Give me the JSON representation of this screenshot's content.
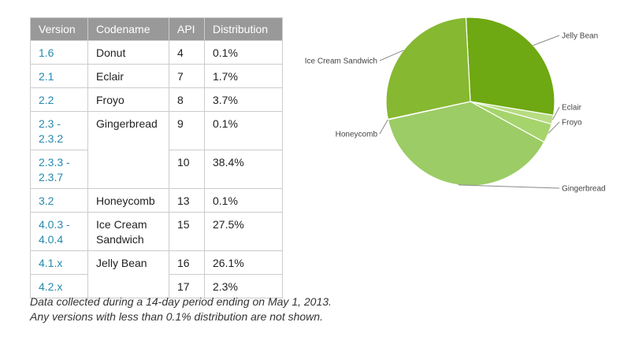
{
  "table": {
    "headers": [
      "Version",
      "Codename",
      "API",
      "Distribution"
    ],
    "rows": [
      {
        "version": "1.6",
        "codename": "Donut",
        "api": "4",
        "distribution": "0.1%"
      },
      {
        "version": "2.1",
        "codename": "Eclair",
        "api": "7",
        "distribution": "1.7%"
      },
      {
        "version": "2.2",
        "codename": "Froyo",
        "api": "8",
        "distribution": "3.7%"
      },
      {
        "version": "2.3 - 2.3.2",
        "codename": "Gingerbread",
        "api": "9",
        "distribution": "0.1%"
      },
      {
        "version": "2.3.3 - 2.3.7",
        "codename": "",
        "api": "10",
        "distribution": "38.4%"
      },
      {
        "version": "3.2",
        "codename": "Honeycomb",
        "api": "13",
        "distribution": "0.1%"
      },
      {
        "version": "4.0.3 - 4.0.4",
        "codename": "Ice Cream Sandwich",
        "api": "15",
        "distribution": "27.5%"
      },
      {
        "version": "4.1.x",
        "codename": "Jelly Bean",
        "api": "16",
        "distribution": "26.1%"
      },
      {
        "version": "4.2.x",
        "codename": "",
        "api": "17",
        "distribution": "2.3%"
      }
    ]
  },
  "notes": {
    "line1": "Data collected during a 14-day period ending on May 1, 2013.",
    "line2": "Any versions with less than 0.1% distribution are not shown."
  },
  "chart_data": {
    "type": "pie",
    "slices": [
      {
        "label": "Jelly Bean",
        "value": 28.4,
        "color": "#6ea812"
      },
      {
        "label": "Eclair",
        "value": 1.7,
        "color": "#b7dc82"
      },
      {
        "label": "Froyo",
        "value": 3.7,
        "color": "#a6d46c"
      },
      {
        "label": "Gingerbread",
        "value": 38.5,
        "color": "#9ccc65"
      },
      {
        "label": "Honeycomb",
        "value": 0.1,
        "color": "#8fc14e"
      },
      {
        "label": "Ice Cream Sandwich",
        "value": 27.5,
        "color": "#86b832"
      }
    ]
  }
}
